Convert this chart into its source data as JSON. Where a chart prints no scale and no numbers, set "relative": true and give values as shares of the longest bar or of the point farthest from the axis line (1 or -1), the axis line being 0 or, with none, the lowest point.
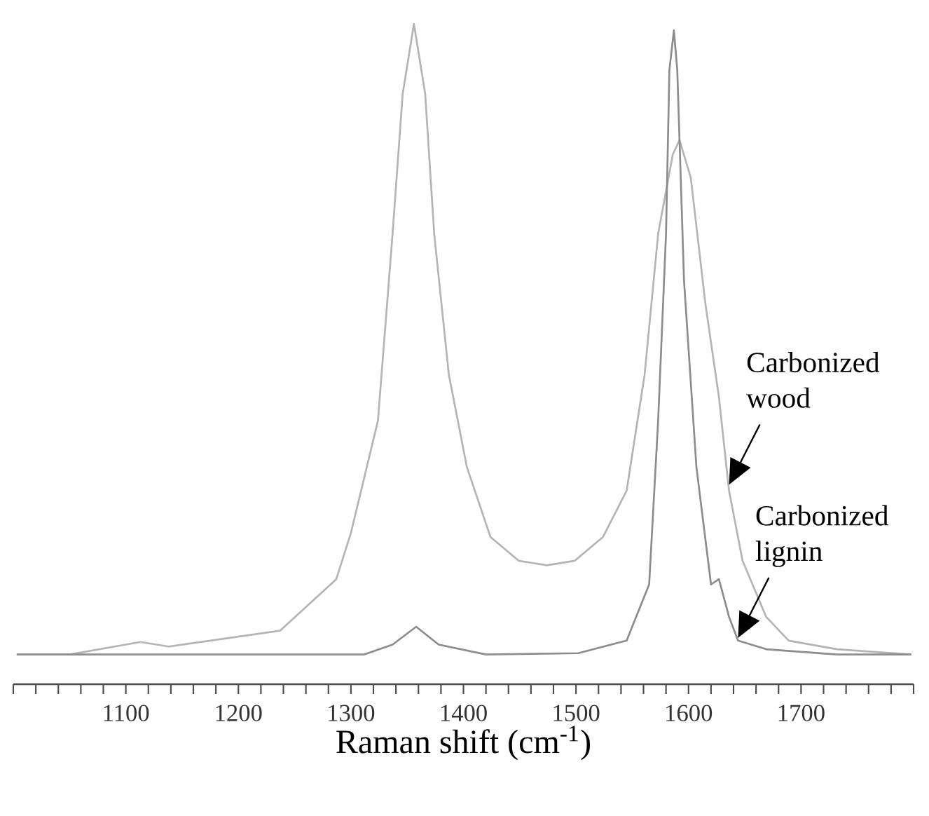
{
  "chart_data": {
    "type": "line",
    "relative": true,
    "xlabel": "Raman shift (cm$^{-1}$)",
    "xlim": [
      1000,
      1800
    ],
    "xticks": [
      {
        "value": 1000,
        "label": null
      },
      {
        "value": 1020,
        "label": null
      },
      {
        "value": 1040,
        "label": null
      },
      {
        "value": 1060,
        "label": null
      },
      {
        "value": 1080,
        "label": null
      },
      1100,
      {
        "value": 1120,
        "label": null
      },
      {
        "value": 1140,
        "label": null
      },
      {
        "value": 1160,
        "label": null
      },
      {
        "value": 1180,
        "label": null
      },
      1200,
      {
        "value": 1220,
        "label": null
      },
      {
        "value": 1240,
        "label": null
      },
      {
        "value": 1260,
        "label": null
      },
      {
        "value": 1280,
        "label": null
      },
      1300,
      {
        "value": 1320,
        "label": null
      },
      {
        "value": 1340,
        "label": null
      },
      {
        "value": 1360,
        "label": null
      },
      {
        "value": 1380,
        "label": null
      },
      1400,
      {
        "value": 1420,
        "label": null
      },
      {
        "value": 1440,
        "label": null
      },
      {
        "value": 1460,
        "label": null
      },
      {
        "value": 1480,
        "label": null
      },
      1500,
      {
        "value": 1520,
        "label": null
      },
      {
        "value": 1540,
        "label": null
      },
      {
        "value": 1560,
        "label": null
      },
      {
        "value": 1580,
        "label": null
      },
      1600,
      {
        "value": 1620,
        "label": null
      },
      {
        "value": 1640,
        "label": null
      },
      {
        "value": 1660,
        "label": null
      },
      {
        "value": 1680,
        "label": null
      },
      1700,
      {
        "value": 1720,
        "label": null
      },
      {
        "value": 1740,
        "label": null
      },
      {
        "value": 1760,
        "label": null
      },
      {
        "value": 1780,
        "label": null
      },
      {
        "value": 1800,
        "label": null
      }
    ],
    "series": [
      {
        "color": "#b4b4b4",
        "x": [
          1003,
          1050,
          1113,
          1138,
          1175,
          1237,
          1287,
          1300,
          1324,
          1337,
          1346,
          1356,
          1366,
          1374,
          1387,
          1403,
          1424,
          1449,
          1474,
          1499,
          1524,
          1545,
          1561,
          1573,
          1586,
          1592,
          1602,
          1615,
          1627,
          1636,
          1648,
          1669,
          1689,
          1732,
          1798
        ],
        "values": [
          0.045,
          0.045,
          0.064,
          0.057,
          0.066,
          0.081,
          0.159,
          0.229,
          0.399,
          0.682,
          0.894,
          1,
          0.894,
          0.682,
          0.469,
          0.329,
          0.223,
          0.187,
          0.18,
          0.187,
          0.223,
          0.293,
          0.469,
          0.682,
          0.802,
          0.824,
          0.767,
          0.576,
          0.435,
          0.293,
          0.187,
          0.102,
          0.066,
          0.053,
          0.045
        ]
      },
      {
        "color": "#8c8c8c",
        "x": [
          1003,
          1312,
          1337,
          1358,
          1378,
          1420,
          1502,
          1545,
          1565,
          1573,
          1580,
          1583,
          1587,
          1590,
          1596,
          1607,
          1620,
          1627,
          1636,
          1644,
          1669,
          1732,
          1798
        ],
        "values": [
          0.045,
          0.045,
          0.06,
          0.087,
          0.06,
          0.045,
          0.047,
          0.066,
          0.151,
          0.399,
          0.682,
          0.93,
          0.99,
          0.93,
          0.611,
          0.329,
          0.151,
          0.159,
          0.102,
          0.066,
          0.053,
          0.045,
          0.045
        ]
      }
    ],
    "annotations": [
      {
        "text": "Carbonized wood",
        "x": 1636,
        "y": 0.302
      },
      {
        "text": "Carbonized lignin",
        "x": 1644,
        "y": 0.07
      }
    ]
  }
}
